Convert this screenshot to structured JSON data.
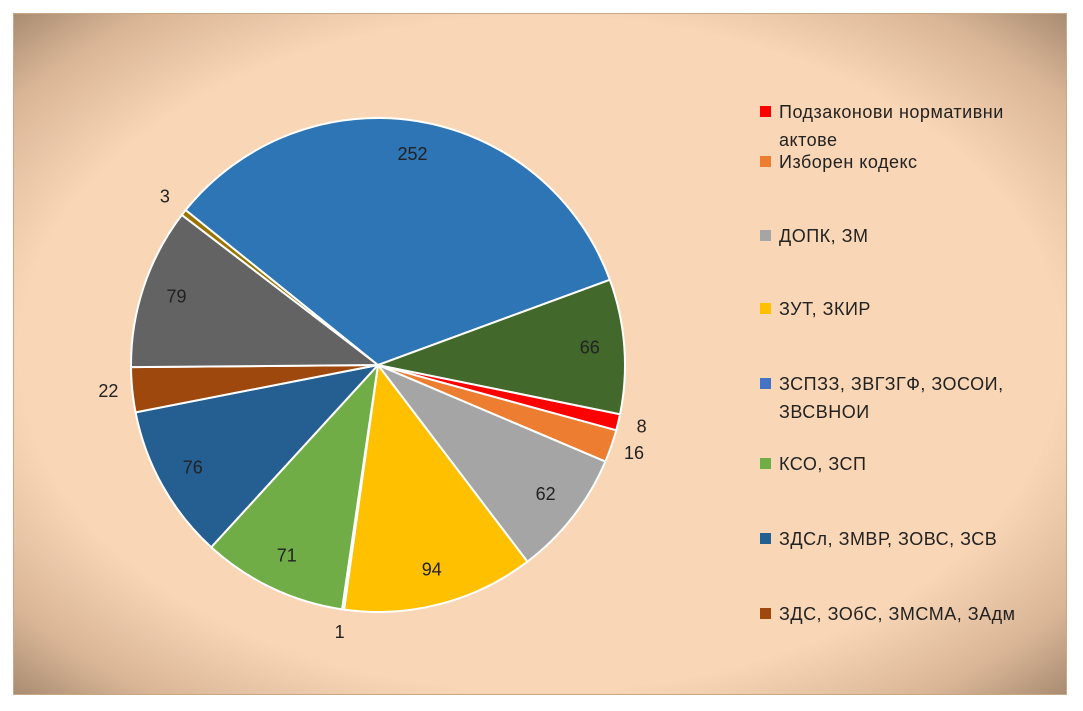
{
  "chart_data": {
    "type": "pie",
    "categories": [
      "Подзаконови нормативни актове",
      "Изборен кодекс",
      "ДОПК, ЗМ",
      "ЗУТ, ЗКИР",
      "ЗСПЗЗ, ЗВГЗГФ, ЗОСОИ, ЗВСВНОИ",
      "КСО, ЗСП",
      "ЗДСл, ЗМВР, ЗОВС, ЗСВ",
      "ЗДС, ЗОбС, ЗМСМА, ЗАдм",
      null,
      null,
      null,
      null
    ],
    "values": [
      8,
      16,
      62,
      94,
      1,
      71,
      76,
      22,
      79,
      3,
      252,
      66
    ],
    "colors": [
      "#ff0000",
      "#ed7d31",
      "#a5a5a5",
      "#ffc000",
      "#4472c4",
      "#70ad47",
      "#255e91",
      "#9e480e",
      "#636363",
      "#997300",
      "#2e75b6",
      "#43682b"
    ]
  }
}
